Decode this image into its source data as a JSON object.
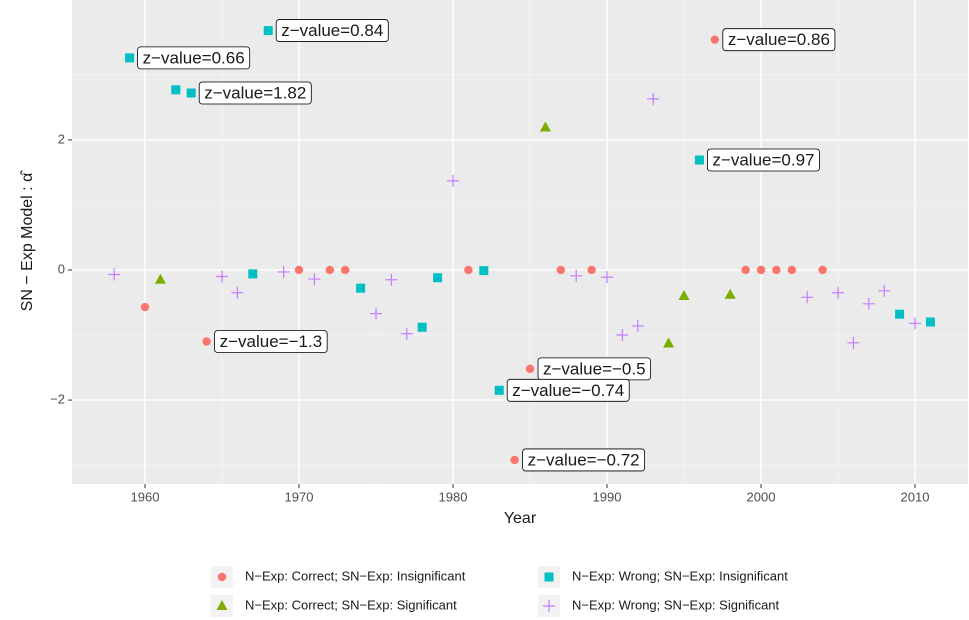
{
  "chart_data": {
    "type": "scatter",
    "x_label": "Year",
    "y_label": "SN − Exp Model : α̂",
    "xlim": [
      1955.26,
      2013.44
    ],
    "ylim": [
      -3.29,
      4.15
    ],
    "xticks": [
      1960,
      1970,
      1980,
      1990,
      2000,
      2010
    ],
    "yticks": [
      {
        "value": -2,
        "label": "−2"
      },
      0,
      2
    ],
    "grid": true,
    "legend": "bottom",
    "series": [
      {
        "name": "N−Exp: Correct; SN−Exp: Insignificant",
        "color": "#F8766D",
        "shape": "circle",
        "x": [
          1960,
          1964,
          1970,
          1972,
          1973,
          1981,
          1985,
          1984,
          1987,
          1989,
          1997,
          1999,
          2000,
          2001,
          2002,
          2004
        ],
        "values": [
          -0.57,
          -1.1,
          0,
          0,
          0,
          0,
          -1.52,
          -2.92,
          0,
          0,
          3.54,
          0,
          0,
          0,
          0,
          0
        ],
        "annotations": [
          null,
          "z−value=−1.3",
          null,
          null,
          null,
          null,
          "z−value=−0.5",
          "z−value=−0.72",
          null,
          null,
          "z−value=0.86",
          null,
          null,
          null,
          null,
          null
        ]
      },
      {
        "name": "N−Exp: Correct; SN−Exp: Significant",
        "color": "#7CAE00",
        "shape": "triangle",
        "x": [
          1961,
          1986,
          1994,
          1995,
          1998
        ],
        "values": [
          -0.15,
          2.19,
          -1.13,
          -0.4,
          -0.38
        ]
      },
      {
        "name": "N−Exp: Wrong; SN−Exp: Insignificant",
        "color": "#00BFC4",
        "shape": "square",
        "x": [
          1959,
          1962,
          1963,
          1967,
          1968,
          1974,
          1978,
          1979,
          1982,
          1983,
          1996,
          2009,
          2011
        ],
        "values": [
          3.26,
          2.77,
          2.72,
          -0.06,
          3.68,
          -0.28,
          -0.88,
          -0.12,
          -0.01,
          -1.85,
          1.69,
          -0.68,
          -0.8
        ],
        "annotations": [
          "z−value=0.66",
          null,
          "z−value=1.82",
          null,
          "z−value=0.84",
          null,
          null,
          null,
          null,
          "z−value=−0.74",
          "z−value=0.97",
          null,
          null
        ]
      },
      {
        "name": "N−Exp: Wrong; SN−Exp: Significant",
        "color": "#C77CFF",
        "shape": "plus",
        "x": [
          1958,
          1965,
          1966,
          1969,
          1971,
          1975,
          1976,
          1977,
          1980,
          1988,
          1990,
          1991,
          1992,
          1993,
          2003,
          2005,
          2006,
          2007,
          2008,
          2010
        ],
        "values": [
          -0.07,
          -0.1,
          -0.35,
          -0.03,
          -0.14,
          -0.67,
          -0.15,
          -0.98,
          1.37,
          -0.09,
          -0.11,
          -1.0,
          -0.86,
          2.63,
          -0.42,
          -0.35,
          -1.12,
          -0.52,
          -0.32,
          -0.82
        ]
      }
    ]
  }
}
